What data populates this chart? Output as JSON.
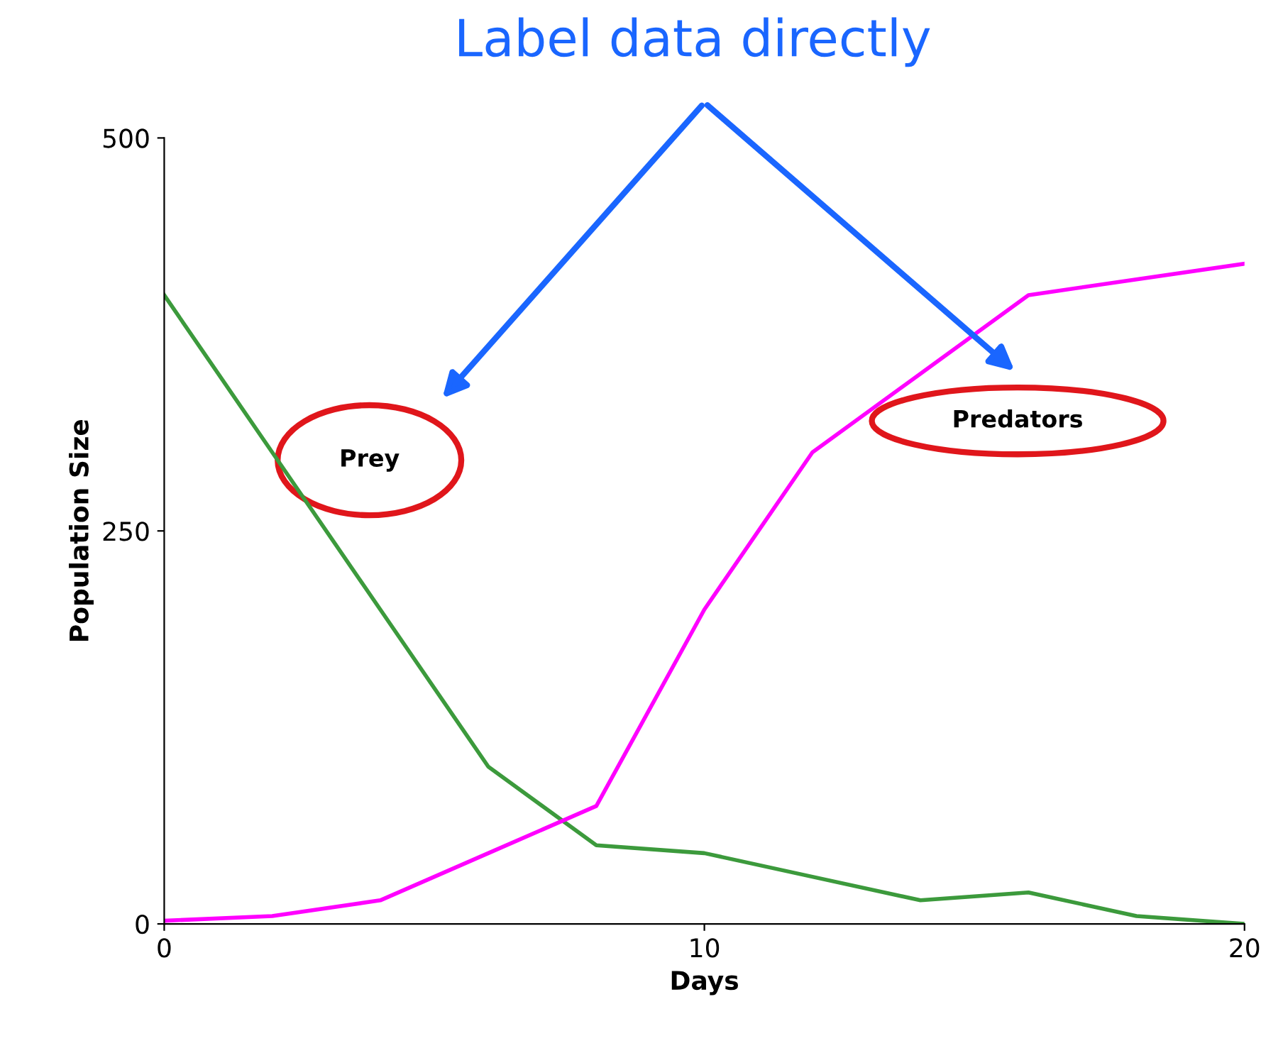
{
  "chart_data": {
    "type": "line",
    "title": "Label data directly",
    "xlabel": "Days",
    "ylabel": "Population Size",
    "x": [
      0,
      2,
      4,
      6,
      8,
      10,
      12,
      14,
      16,
      18,
      20
    ],
    "series": [
      {
        "name": "Prey",
        "color": "#3c9a3c",
        "values": [
          400,
          300,
          200,
          100,
          50,
          45,
          30,
          15,
          20,
          5,
          0
        ]
      },
      {
        "name": "Predators",
        "color": "#ff00ff",
        "values": [
          2,
          5,
          15,
          45,
          75,
          200,
          300,
          350,
          400,
          410,
          420
        ]
      }
    ],
    "xlim": [
      0,
      20
    ],
    "ylim": [
      0,
      500
    ],
    "xticks": [
      0,
      10,
      20
    ],
    "yticks": [
      0,
      250,
      500
    ],
    "grid": false,
    "legend": false,
    "marker": "none",
    "line_style": "solid"
  }
}
